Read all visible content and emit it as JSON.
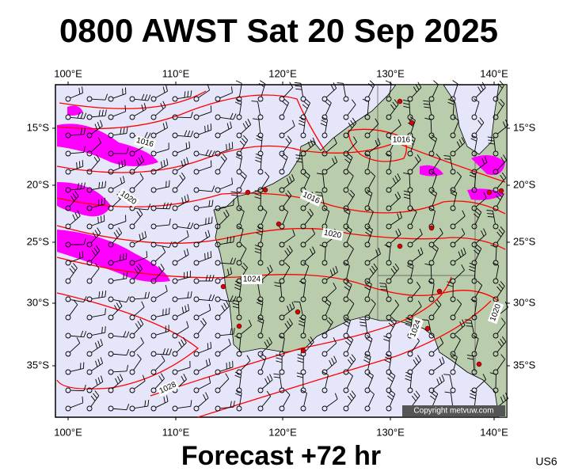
{
  "header": {
    "title": "0800 AWST Sat 20 Sep 2025"
  },
  "lon_labels": [
    "100°E",
    "110°E",
    "120°E",
    "130°E",
    "140°E"
  ],
  "lat_labels": [
    "15°S",
    "20°S",
    "25°S",
    "30°S",
    "35°S"
  ],
  "isobar_labels": [
    "1016",
    "1020",
    "1016",
    "1016",
    "1020",
    "1024",
    "1024",
    "1020",
    "1028"
  ],
  "copyright": "Copyright metvuw.com",
  "footer": {
    "forecast": "Forecast +72 hr",
    "code": "US6"
  }
}
